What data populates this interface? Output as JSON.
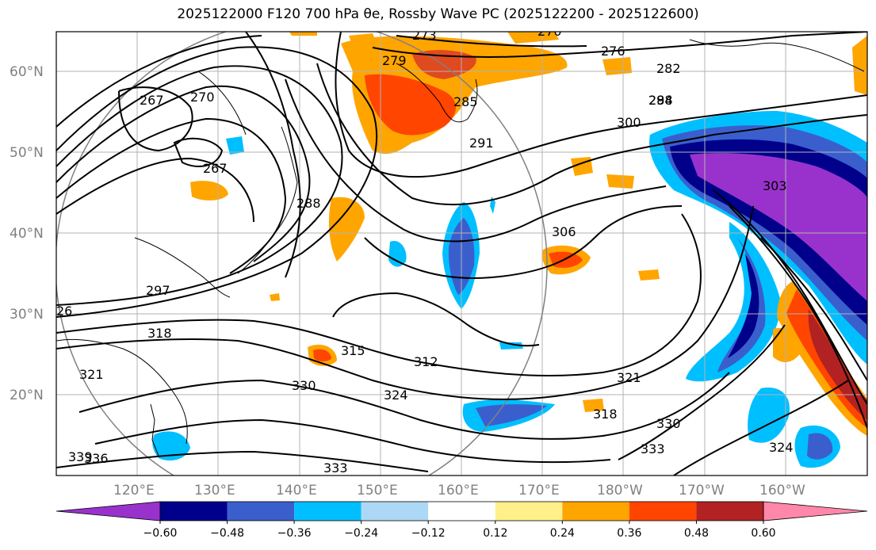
{
  "title": "2025122000 F120 700 hPa θe, Rossby Wave PC (2025122200 - 2025122600)",
  "lat_labels": [
    "60°N",
    "50°N",
    "40°N",
    "30°N",
    "20°N"
  ],
  "lon_labels": [
    "120°E",
    "130°E",
    "140°E",
    "150°E",
    "160°E",
    "170°E",
    "180°W",
    "170°W",
    "160°W"
  ],
  "contour_labels": [
    "273",
    "270",
    "276",
    "279",
    "282",
    "285",
    "288",
    "291",
    "294",
    "300",
    "303",
    "306",
    "267",
    "270",
    "267",
    "288",
    "297",
    "26",
    "318",
    "315",
    "312",
    "321",
    "321",
    "330",
    "324",
    "318",
    "330",
    "333",
    "333",
    "336",
    "339",
    "324"
  ],
  "colorbar": {
    "ticks": [
      "−0.60",
      "−0.48",
      "−0.36",
      "−0.24",
      "−0.12",
      "0.12",
      "0.24",
      "0.36",
      "0.48",
      "0.60"
    ],
    "colors": [
      "#9932cc",
      "#00008b",
      "#3a5fcd",
      "#00bfff",
      "#add8f5",
      "#ffffff",
      "#fff08c",
      "#ffa500",
      "#ff4500",
      "#b22222",
      "#ff88aa"
    ]
  }
}
